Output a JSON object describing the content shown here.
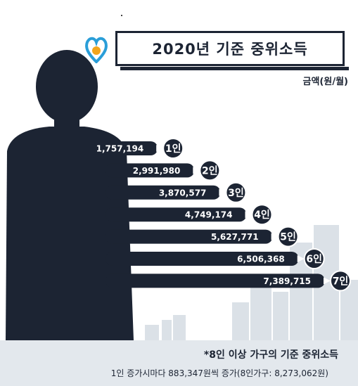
{
  "header": {
    "title": "2020년 기준 중위소득",
    "unit": "금액(원/월)"
  },
  "footer": {
    "note": "*8인 이상 가구의 기준 중위소득",
    "detail": "1인 증가시마다 883,347원씩 증가(8인가구: 8,273,062원)"
  },
  "colors": {
    "bar": "#1c2433",
    "silhouette": "#1c2433",
    "buildings": "#dbe1e7",
    "logo_blue": "#2a9ed8",
    "logo_orange": "#f2a51c"
  },
  "chart_data": {
    "type": "bar",
    "orientation": "horizontal",
    "title": "2020년 기준 중위소득",
    "unit": "금액(원/월)",
    "categories": [
      "1인",
      "2인",
      "3인",
      "4인",
      "5인",
      "6인",
      "7인"
    ],
    "values": [
      1757194,
      2991980,
      3870577,
      4749174,
      5627771,
      6506368,
      7389715
    ],
    "value_labels": [
      "1,757,194",
      "2,991,980",
      "3,870,577",
      "4,749,174",
      "5,627,771",
      "6,506,368",
      "7,389,715"
    ]
  }
}
